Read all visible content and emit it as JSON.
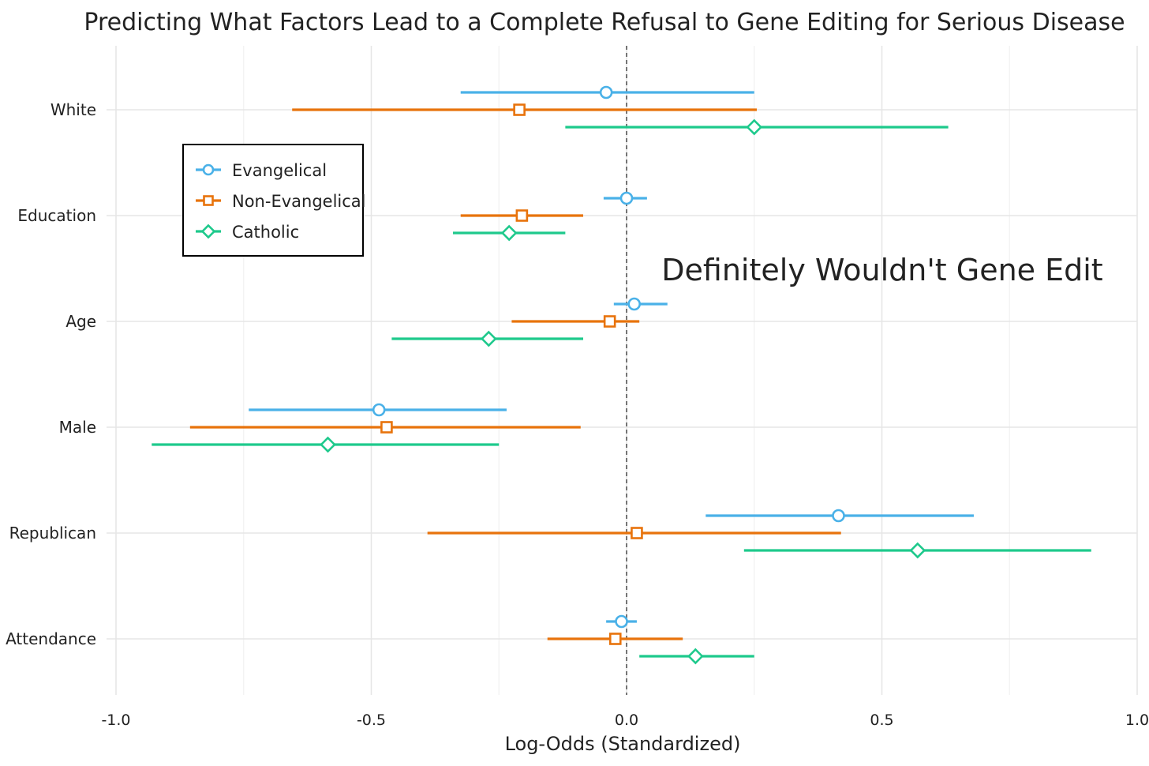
{
  "chart_data": {
    "type": "scatter",
    "title": "Predicting What Factors Lead to a Complete Refusal to Gene Editing for Serious Disease",
    "annotation": "Definitely Wouldn't Gene Edit",
    "xlabel": "Log-Odds (Standardized)",
    "ylabel": "",
    "xlim": [
      -1.0,
      1.0
    ],
    "x_ticks": [
      "-1.0",
      "-0.5",
      "0.0",
      "0.5",
      "1.0"
    ],
    "x_tick_values": [
      -1.0,
      -0.5,
      0.0,
      0.5,
      1.0
    ],
    "categories": [
      "White",
      "Education",
      "Age",
      "Male",
      "Republican",
      "Attendance"
    ],
    "reference_line": 0,
    "grid": true,
    "legend": "top-left",
    "series": [
      {
        "name": "Evangelical",
        "color": "#4ab1e8",
        "marker": "circle",
        "estimates": [
          -0.04,
          0.0,
          0.015,
          -0.485,
          0.415,
          -0.01
        ],
        "lower": [
          -0.325,
          -0.045,
          -0.025,
          -0.74,
          0.155,
          -0.04
        ],
        "upper": [
          0.25,
          0.04,
          0.08,
          -0.235,
          0.68,
          0.02
        ]
      },
      {
        "name": "Non-Evangelical",
        "color": "#e8730c",
        "marker": "square",
        "estimates": [
          -0.21,
          -0.205,
          -0.033,
          -0.47,
          0.02,
          -0.022
        ],
        "lower": [
          -0.655,
          -0.325,
          -0.225,
          -0.855,
          -0.39,
          -0.155
        ],
        "upper": [
          0.255,
          -0.085,
          0.025,
          -0.09,
          0.42,
          0.11
        ]
      },
      {
        "name": "Catholic",
        "color": "#1ec98c",
        "marker": "diamond",
        "estimates": [
          0.25,
          -0.23,
          -0.27,
          -0.585,
          0.57,
          0.135
        ],
        "lower": [
          -0.12,
          -0.34,
          -0.46,
          -0.93,
          0.23,
          0.025
        ],
        "upper": [
          0.63,
          -0.12,
          -0.085,
          -0.25,
          0.91,
          0.25
        ]
      }
    ]
  }
}
